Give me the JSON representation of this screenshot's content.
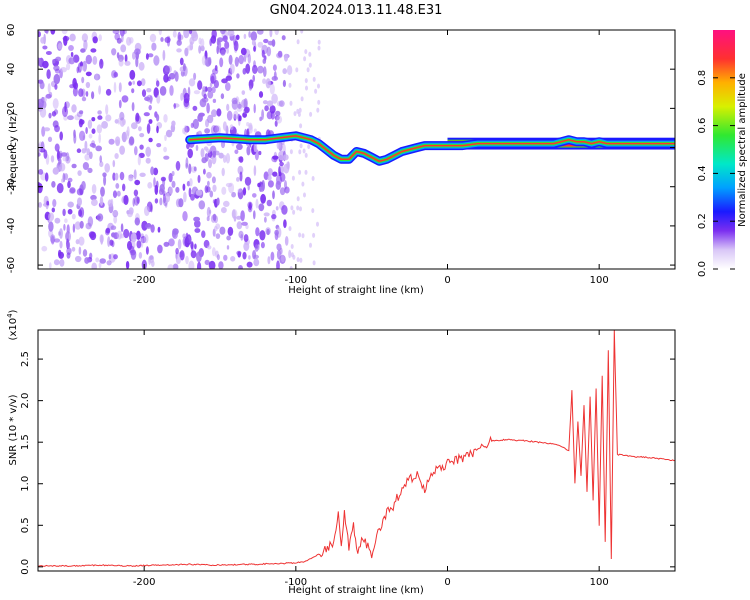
{
  "title": "GN04.2024.013.11.48.E31",
  "colors": {
    "line": "#ee3333",
    "spec_purple": "#7b2ff0",
    "spec_light": "#cdb2f7"
  },
  "chart_data": [
    {
      "type": "heatmap",
      "xlabel": "Height of straight line (km)",
      "ylabel": "Frequency (Hz)",
      "xlim": [
        -270,
        150
      ],
      "ylim": [
        -62,
        60
      ],
      "x_ticks": [
        -200,
        -100,
        0,
        100
      ],
      "x_tick_labels": [
        "-200",
        "-100",
        "0",
        "100"
      ],
      "y_ticks": [
        -60,
        -40,
        -20,
        0,
        20,
        40,
        60
      ],
      "y_tick_labels": [
        "-60",
        "-40",
        "-20",
        "0",
        "20",
        "40",
        "60"
      ],
      "colorbar": {
        "label": "Normalized spectral amplitude",
        "range": [
          0,
          1
        ],
        "ticks": [
          0.0,
          0.2,
          0.4,
          0.6,
          0.8
        ],
        "tick_labels": [
          "0.0",
          "0.2",
          "0.4",
          "0.6",
          "0.8"
        ]
      },
      "noise_region_x": [
        -270,
        -100
      ],
      "signal_trace": {
        "x": [
          -170,
          -150,
          -130,
          -120,
          -110,
          -100,
          -95,
          -90,
          -85,
          -80,
          -75,
          -70,
          -65,
          -60,
          -55,
          -50,
          -45,
          -40,
          -35,
          -30,
          -25,
          -20,
          -15,
          -10,
          0,
          10,
          20,
          40,
          60,
          70,
          75,
          80,
          85,
          90,
          95,
          100,
          105,
          110,
          130,
          150
        ],
        "y": [
          4,
          5,
          4,
          4,
          5,
          6,
          5,
          4,
          2,
          -1,
          -4,
          -6,
          -6,
          -2,
          -3,
          -5,
          -7,
          -6,
          -4,
          -2,
          -1,
          0,
          1,
          1,
          1,
          1,
          2,
          2,
          2,
          2,
          3,
          4,
          3,
          3,
          2,
          3,
          2,
          2,
          2,
          2
        ]
      },
      "band_y": [
        0,
        4
      ]
    },
    {
      "type": "line",
      "xlabel": "Height of straight line (km)",
      "ylabel": "SNR (10 * v/v)",
      "y_exponent_label": "(x10",
      "y_exponent_sup": "4",
      "y_exponent_close": ")",
      "xlim": [
        -270,
        150
      ],
      "ylim": [
        -0.05,
        2.85
      ],
      "x_ticks": [
        -200,
        -100,
        0,
        100
      ],
      "x_tick_labels": [
        "-200",
        "-100",
        "0",
        "100"
      ],
      "y_ticks": [
        0.0,
        0.5,
        1.0,
        1.5,
        2.0,
        2.5
      ],
      "y_tick_labels": [
        "0.0",
        "0.5",
        "1.0",
        "1.5",
        "2.0",
        "2.5"
      ],
      "series": [
        {
          "x": [
            -270,
            -250,
            -230,
            -210,
            -190,
            -170,
            -150,
            -130,
            -110,
            -100,
            -95,
            -90,
            -85,
            -80,
            -75,
            -72,
            -70,
            -68,
            -65,
            -62,
            -60,
            -55,
            -50,
            -45,
            -40,
            -35,
            -30,
            -25,
            -20,
            -15,
            -10,
            -5,
            0,
            5,
            10,
            15,
            20,
            25,
            30,
            40,
            50,
            60,
            70,
            75,
            80,
            82,
            84,
            86,
            88,
            90,
            92,
            94,
            96,
            98,
            100,
            102,
            104,
            106,
            108,
            110,
            112,
            115,
            120,
            130,
            140,
            150
          ],
          "y": [
            0.01,
            0.01,
            0.02,
            0.01,
            0.02,
            0.03,
            0.02,
            0.03,
            0.04,
            0.05,
            0.06,
            0.1,
            0.15,
            0.2,
            0.3,
            0.62,
            0.2,
            0.68,
            0.25,
            0.55,
            0.18,
            0.35,
            0.15,
            0.45,
            0.65,
            0.75,
            0.95,
            1.05,
            1.1,
            0.9,
            1.15,
            1.2,
            1.25,
            1.28,
            1.32,
            1.35,
            1.42,
            1.48,
            1.52,
            1.53,
            1.52,
            1.5,
            1.48,
            1.45,
            1.4,
            2.12,
            1.0,
            1.75,
            1.1,
            1.95,
            0.9,
            2.05,
            0.8,
            2.15,
            0.5,
            2.3,
            0.3,
            2.6,
            0.1,
            2.85,
            1.35,
            1.35,
            1.33,
            1.32,
            1.3,
            1.28
          ]
        }
      ]
    }
  ]
}
